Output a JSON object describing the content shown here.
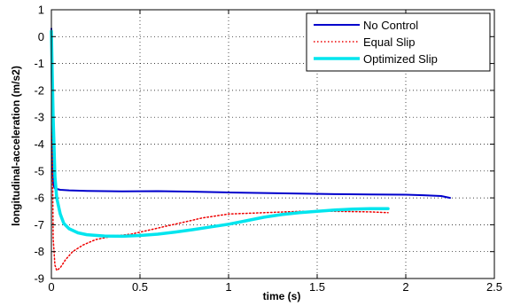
{
  "chart_data": {
    "type": "line",
    "title": "",
    "xlabel": "time (s)",
    "ylabel": "longitudinal-acceleration (m/s2)",
    "xlim": [
      0,
      2.5
    ],
    "ylim": [
      -9,
      1
    ],
    "xticks": [
      0,
      0.5,
      1,
      1.5,
      2,
      2.5
    ],
    "xtick_labels": [
      "0",
      "0.5",
      "1",
      "1.5",
      "2",
      "2.5"
    ],
    "yticks": [
      1,
      0,
      -1,
      -2,
      -3,
      -4,
      -5,
      -6,
      -7,
      -8,
      -9
    ],
    "ytick_labels": [
      "1",
      "0",
      "-1",
      "-2",
      "-3",
      "-4",
      "-5",
      "-6",
      "-7",
      "-8",
      "-9"
    ],
    "grid": true,
    "legend_position": "top-right",
    "series": [
      {
        "name": "No Control",
        "color": "#0000cc",
        "style": "solid",
        "width": 2,
        "x": [
          0,
          0.005,
          0.01,
          0.02,
          0.05,
          0.1,
          0.2,
          0.4,
          0.6,
          0.8,
          1.0,
          1.2,
          1.4,
          1.6,
          1.8,
          2.0,
          2.1,
          2.2,
          2.25
        ],
        "y": [
          0.3,
          -4.5,
          -5.5,
          -5.65,
          -5.7,
          -5.72,
          -5.74,
          -5.76,
          -5.75,
          -5.77,
          -5.8,
          -5.82,
          -5.84,
          -5.86,
          -5.87,
          -5.88,
          -5.9,
          -5.93,
          -6.0
        ]
      },
      {
        "name": "Equal Slip",
        "color": "#ee0000",
        "style": "dotted",
        "width": 1.5,
        "x": [
          0,
          0.01,
          0.02,
          0.03,
          0.05,
          0.08,
          0.12,
          0.18,
          0.25,
          0.35,
          0.45,
          0.55,
          0.65,
          0.75,
          0.85,
          1.0,
          1.2,
          1.4,
          1.6,
          1.8,
          1.9
        ],
        "y": [
          0.2,
          -7.5,
          -8.5,
          -8.7,
          -8.6,
          -8.3,
          -8.0,
          -7.75,
          -7.55,
          -7.42,
          -7.35,
          -7.2,
          -7.05,
          -6.9,
          -6.75,
          -6.6,
          -6.55,
          -6.5,
          -6.5,
          -6.52,
          -6.55
        ]
      },
      {
        "name": "Optimized Slip",
        "color": "#00e5ee",
        "style": "solid",
        "width": 3.5,
        "x": [
          0,
          0.01,
          0.02,
          0.03,
          0.05,
          0.07,
          0.1,
          0.15,
          0.2,
          0.3,
          0.4,
          0.5,
          0.6,
          0.7,
          0.8,
          0.9,
          1.0,
          1.1,
          1.2,
          1.3,
          1.4,
          1.5,
          1.6,
          1.7,
          1.8,
          1.9
        ],
        "y": [
          0.2,
          -3.0,
          -5.2,
          -6.0,
          -6.6,
          -6.95,
          -7.15,
          -7.3,
          -7.37,
          -7.42,
          -7.43,
          -7.4,
          -7.35,
          -7.27,
          -7.18,
          -7.08,
          -6.98,
          -6.85,
          -6.72,
          -6.62,
          -6.55,
          -6.5,
          -6.45,
          -6.42,
          -6.4,
          -6.4
        ]
      }
    ]
  }
}
